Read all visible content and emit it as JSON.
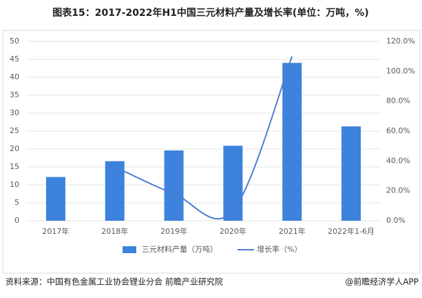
{
  "chart_data": {
    "type": "bar",
    "title": "图表15：2017-2022年H1中国三元材料产量及增长率(单位：万吨，%)",
    "categories": [
      "2017年",
      "2018年",
      "2019年",
      "2020年",
      "2021年",
      "2022年1-6月"
    ],
    "series": [
      {
        "name": "三元材料产量（万吨）",
        "type": "bar",
        "color": "#3d82dc",
        "values": [
          12.2,
          16.6,
          19.6,
          20.9,
          44,
          26.3
        ]
      },
      {
        "name": "增长率（%）",
        "type": "line",
        "axis": "y2",
        "color": "#4a7fd0",
        "values": [
          null,
          36.1,
          18.1,
          6.6,
          110,
          null
        ]
      }
    ],
    "ylim": [
      0,
      50
    ],
    "yticks": [
      0,
      5,
      10,
      15,
      20,
      25,
      30,
      35,
      40,
      45,
      50
    ],
    "y2lim": [
      0,
      120
    ],
    "y2ticks": [
      {
        "value": 0,
        "label": "0.0%"
      },
      {
        "value": 20,
        "label": "20.0%"
      },
      {
        "value": 40,
        "label": "40.0%"
      },
      {
        "value": 60,
        "label": "60.0%"
      },
      {
        "value": 80,
        "label": "80.0%"
      },
      {
        "value": 100,
        "label": "100.0%"
      },
      {
        "value": 120,
        "label": "120.0%"
      }
    ],
    "grid": true,
    "source": "资料来源：中国有色金属工业协会锂业分会 前瞻产业研究院",
    "credit": "@前瞻经济学人APP"
  }
}
